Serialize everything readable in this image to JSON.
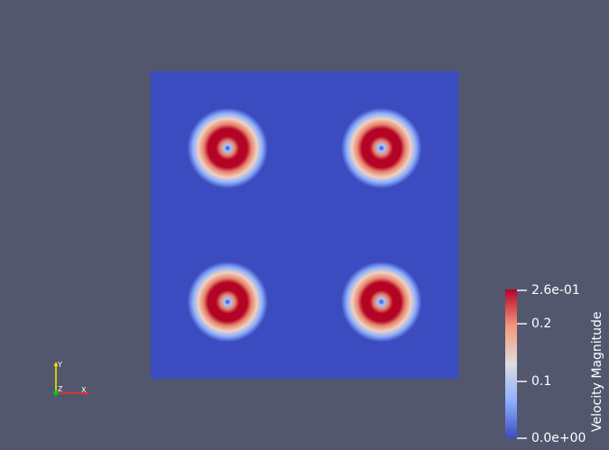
{
  "view": {
    "background": "#52576e",
    "vortex_count": 4,
    "colormap": "Cool to Warm"
  },
  "colorbar": {
    "title": "Velocity Magnitude",
    "labels": [
      "2.6e-01",
      "0.2",
      "0.1",
      "0.0e+00"
    ],
    "range": [
      0,
      0.26
    ],
    "colors": [
      "#3b4cc0",
      "#8db0fe",
      "#dddddd",
      "#f49a7b",
      "#b40426"
    ]
  },
  "axes": {
    "x_label": "X",
    "y_label": "Y",
    "z_label": "Z",
    "x_color": "#ff2a2a",
    "y_color": "#e8e800",
    "z_color": "#00cc00"
  }
}
